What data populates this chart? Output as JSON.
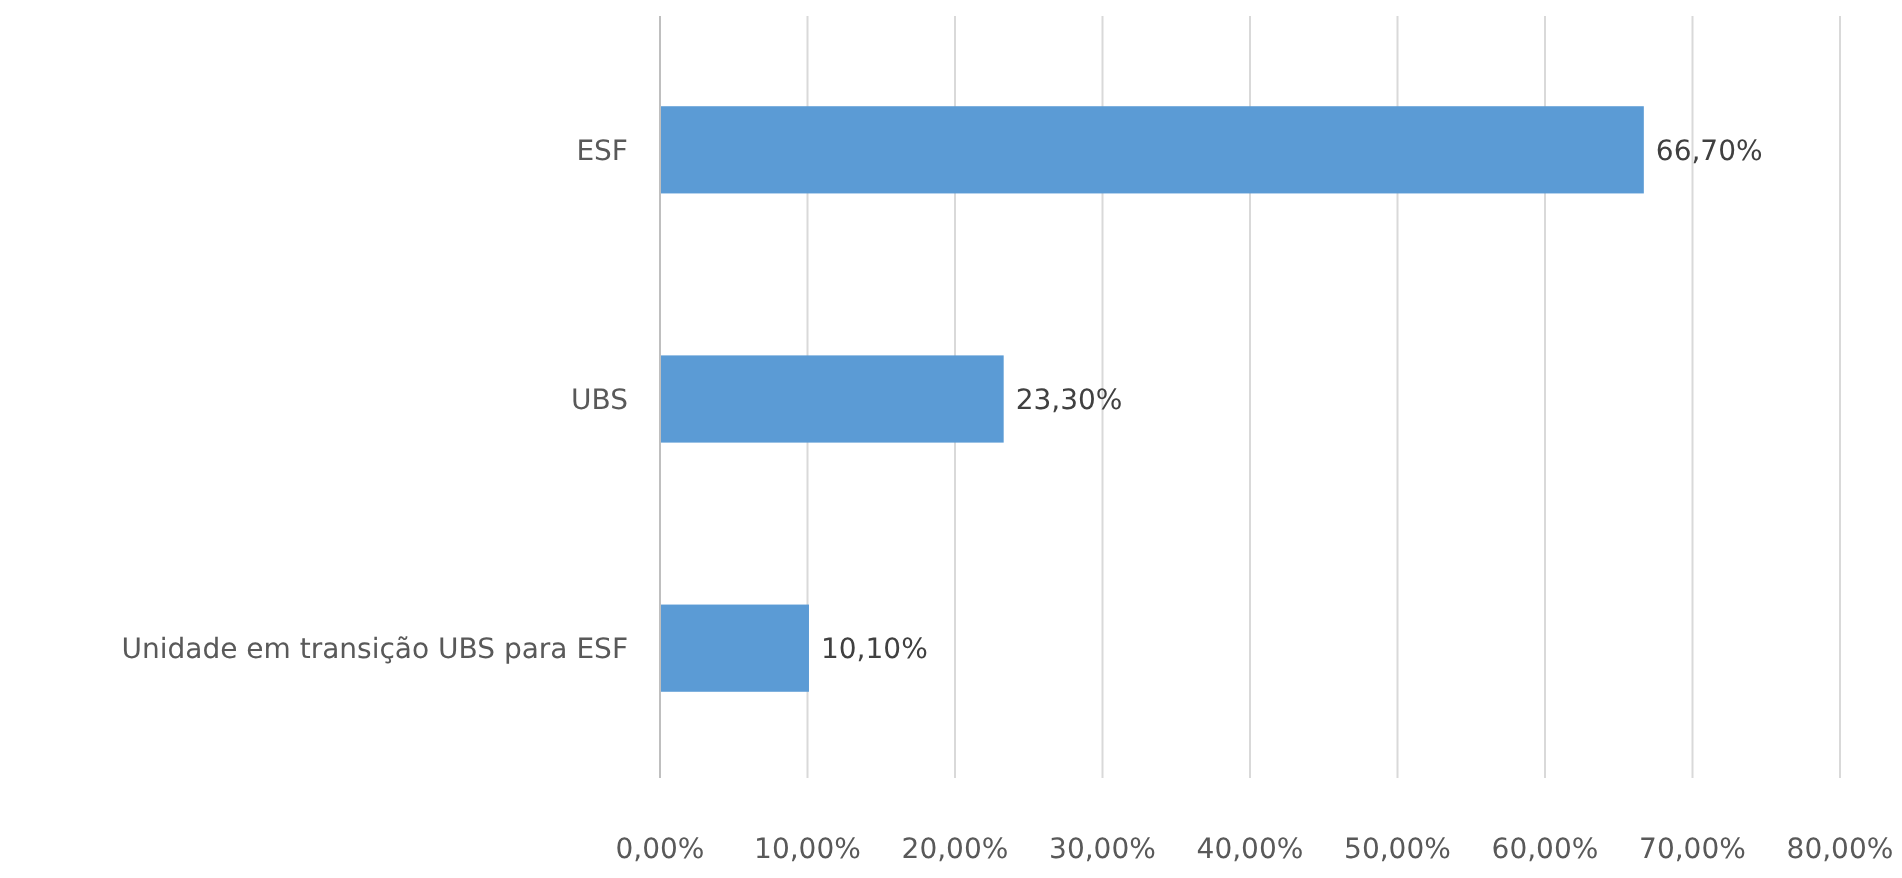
{
  "chart_data": {
    "type": "bar",
    "orientation": "horizontal",
    "categories": [
      "ESF",
      "UBS",
      "Unidade em transição UBS para ESF"
    ],
    "values": [
      66.7,
      23.3,
      10.1
    ],
    "color": "#5b9bd5",
    "value_labels": [
      "66,70%",
      "23,30%",
      "10,10%"
    ],
    "xlim": [
      0,
      80
    ],
    "xticks": [
      {
        "value": 0,
        "label": "0,00%"
      },
      {
        "value": 10,
        "label": "10,00%"
      },
      {
        "value": 20,
        "label": "20,00%"
      },
      {
        "value": 30,
        "label": "30,00%"
      },
      {
        "value": 40,
        "label": "40,00%"
      },
      {
        "value": 50,
        "label": "50,00%"
      },
      {
        "value": 60,
        "label": "60,00%"
      },
      {
        "value": 70,
        "label": "70,00%"
      },
      {
        "value": 80,
        "label": "80,00%"
      }
    ],
    "grid": "x"
  }
}
